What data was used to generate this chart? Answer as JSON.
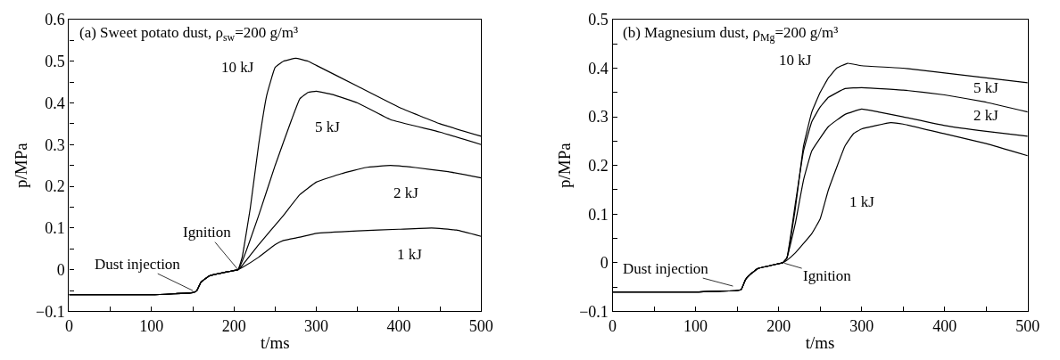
{
  "chart_data": [
    {
      "type": "line",
      "title": "(a) Sweet potato dust, ρ$_{sw}$=200 g/m³",
      "xlabel": "t/ms",
      "ylabel": "p/MPa",
      "line_style": "solid",
      "marker": "none",
      "xlim": [
        0,
        500
      ],
      "ylim": [
        -0.1,
        0.6
      ],
      "xticks": [
        0,
        {
          "value": 50,
          "label": null
        },
        100,
        {
          "value": 150,
          "label": null
        },
        200,
        {
          "value": 250,
          "label": null
        },
        300,
        {
          "value": 350,
          "label": null
        },
        400,
        {
          "value": 450,
          "label": null
        },
        500
      ],
      "yticks": [
        {
          "value": -0.1,
          "label": "−0.1"
        },
        {
          "value": -0.05,
          "label": null
        },
        0,
        {
          "value": 0.05,
          "label": null
        },
        0.1,
        {
          "value": 0.15,
          "label": null
        },
        0.2,
        {
          "value": 0.25,
          "label": null
        },
        0.3,
        {
          "value": 0.35,
          "label": null
        },
        0.4,
        {
          "value": 0.45,
          "label": null
        },
        0.5,
        {
          "value": 0.55,
          "label": null
        },
        0.6
      ],
      "series": [
        {
          "name": "10 kJ",
          "color": "#000000",
          "x": [
            0,
            100,
            150,
            155,
            160,
            170,
            180,
            200,
            205,
            210,
            220,
            230,
            240,
            250,
            260,
            275,
            290,
            300,
            350,
            400,
            450,
            500
          ],
          "values": [
            -0.06,
            -0.06,
            -0.055,
            -0.05,
            -0.03,
            -0.015,
            -0.01,
            -0.002,
            0,
            0.03,
            0.15,
            0.3,
            0.42,
            0.485,
            0.5,
            0.507,
            0.5,
            0.49,
            0.44,
            0.39,
            0.35,
            0.32
          ]
        },
        {
          "name": "5 kJ",
          "color": "#000000",
          "x": [
            0,
            100,
            150,
            155,
            160,
            170,
            180,
            200,
            205,
            210,
            230,
            250,
            270,
            280,
            290,
            300,
            320,
            350,
            390,
            450,
            500
          ],
          "values": [
            -0.06,
            -0.06,
            -0.055,
            -0.05,
            -0.03,
            -0.015,
            -0.01,
            -0.002,
            0,
            0.02,
            0.13,
            0.25,
            0.36,
            0.41,
            0.425,
            0.428,
            0.42,
            0.4,
            0.36,
            0.33,
            0.3
          ]
        },
        {
          "name": "2 kJ",
          "color": "#000000",
          "x": [
            0,
            100,
            150,
            155,
            160,
            170,
            180,
            200,
            205,
            210,
            230,
            260,
            280,
            300,
            330,
            360,
            390,
            420,
            460,
            500
          ],
          "values": [
            -0.06,
            -0.06,
            -0.055,
            -0.05,
            -0.03,
            -0.015,
            -0.01,
            -0.002,
            0,
            0.01,
            0.06,
            0.13,
            0.18,
            0.21,
            0.23,
            0.245,
            0.25,
            0.245,
            0.235,
            0.22
          ]
        },
        {
          "name": "1 kJ",
          "color": "#000000",
          "x": [
            0,
            100,
            150,
            155,
            160,
            170,
            180,
            200,
            205,
            210,
            230,
            250,
            260,
            280,
            300,
            350,
            400,
            440,
            470,
            500
          ],
          "values": [
            -0.06,
            -0.06,
            -0.055,
            -0.05,
            -0.03,
            -0.015,
            -0.01,
            -0.002,
            0,
            0.005,
            0.03,
            0.06,
            0.07,
            0.078,
            0.087,
            0.093,
            0.097,
            0.1,
            0.095,
            0.08
          ]
        }
      ],
      "annotations": [
        {
          "text": "Ignition",
          "x": 205,
          "y": 0
        },
        {
          "text": "Dust injection",
          "x": 150,
          "y": -0.05
        }
      ]
    },
    {
      "type": "line",
      "title": "(b) Magnesium dust, ρ$_{Mg}$=200 g/m³",
      "xlabel": "t/ms",
      "ylabel": "p/MPa",
      "line_style": "solid",
      "marker": "none",
      "xlim": [
        0,
        500
      ],
      "ylim": [
        -0.1,
        0.5
      ],
      "xticks": [
        0,
        {
          "value": 50,
          "label": null
        },
        100,
        {
          "value": 150,
          "label": null
        },
        200,
        {
          "value": 250,
          "label": null
        },
        300,
        {
          "value": 350,
          "label": null
        },
        400,
        {
          "value": 450,
          "label": null
        },
        500
      ],
      "yticks": [
        {
          "value": -0.1,
          "label": "−0.1"
        },
        {
          "value": -0.05,
          "label": null
        },
        0,
        {
          "value": 0.05,
          "label": null
        },
        0.1,
        {
          "value": 0.15,
          "label": null
        },
        0.2,
        {
          "value": 0.25,
          "label": null
        },
        0.3,
        {
          "value": 0.35,
          "label": null
        },
        0.4,
        {
          "value": 0.45,
          "label": null
        },
        0.5
      ],
      "series": [
        {
          "name": "10 kJ",
          "color": "#000000",
          "x": [
            0,
            100,
            150,
            155,
            160,
            165,
            175,
            200,
            205,
            210,
            220,
            230,
            240,
            250,
            260,
            270,
            283,
            300,
            350,
            400,
            450,
            500
          ],
          "values": [
            -0.06,
            -0.06,
            -0.057,
            -0.055,
            -0.035,
            -0.025,
            -0.012,
            -0.002,
            0,
            0.01,
            0.11,
            0.24,
            0.31,
            0.35,
            0.38,
            0.4,
            0.41,
            0.405,
            0.4,
            0.39,
            0.38,
            0.37
          ]
        },
        {
          "name": "5 kJ",
          "color": "#000000",
          "x": [
            0,
            100,
            150,
            155,
            160,
            165,
            175,
            200,
            205,
            210,
            220,
            230,
            240,
            250,
            260,
            280,
            300,
            350,
            400,
            450,
            500
          ],
          "values": [
            -0.06,
            -0.06,
            -0.057,
            -0.055,
            -0.035,
            -0.025,
            -0.012,
            -0.002,
            0,
            0.01,
            0.12,
            0.23,
            0.29,
            0.32,
            0.34,
            0.358,
            0.36,
            0.355,
            0.345,
            0.33,
            0.31
          ]
        },
        {
          "name": "2 kJ",
          "color": "#000000",
          "x": [
            0,
            100,
            150,
            155,
            160,
            165,
            175,
            200,
            205,
            210,
            220,
            230,
            240,
            260,
            280,
            300,
            320,
            350,
            400,
            450,
            500
          ],
          "values": [
            -0.06,
            -0.06,
            -0.057,
            -0.055,
            -0.035,
            -0.025,
            -0.012,
            -0.002,
            0,
            0.01,
            0.08,
            0.17,
            0.23,
            0.28,
            0.305,
            0.316,
            0.31,
            0.3,
            0.282,
            0.27,
            0.26
          ]
        },
        {
          "name": "1 kJ",
          "color": "#000000",
          "x": [
            0,
            100,
            150,
            155,
            160,
            165,
            175,
            200,
            205,
            210,
            220,
            240,
            250,
            260,
            280,
            290,
            300,
            335,
            350,
            400,
            450,
            500
          ],
          "values": [
            -0.06,
            -0.06,
            -0.057,
            -0.055,
            -0.035,
            -0.025,
            -0.012,
            -0.002,
            0,
            0.005,
            0.02,
            0.06,
            0.09,
            0.15,
            0.24,
            0.265,
            0.275,
            0.288,
            0.285,
            0.265,
            0.245,
            0.22
          ]
        }
      ],
      "annotations": [
        {
          "text": "Ignition",
          "x": 207,
          "y": -0.001
        },
        {
          "text": "Dust injection",
          "x": 145,
          "y": -0.048
        }
      ]
    }
  ]
}
